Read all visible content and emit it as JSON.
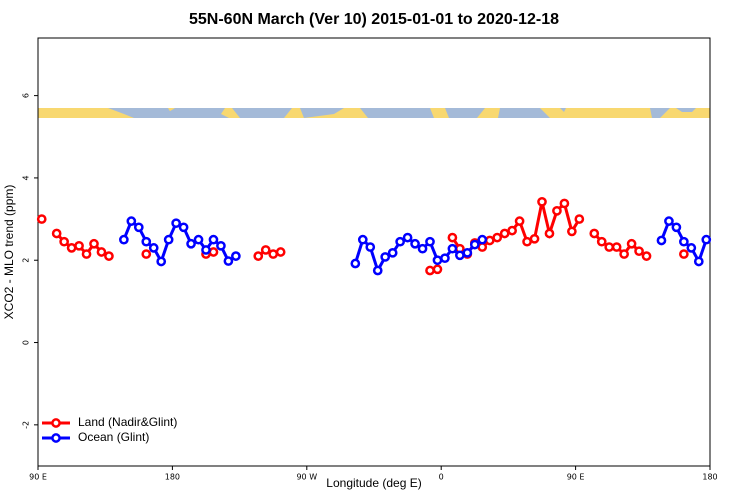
{
  "chart_data": {
    "type": "line",
    "title": "55N-60N March (Ver 10)   2015-01-01 to 2020-12-18",
    "xlabel": "Longitude (deg E)",
    "ylabel": "XCO2 - MLO trend (ppm)",
    "xlim": [
      90,
      540
    ],
    "ylim": [
      -3.0,
      7.4
    ],
    "xticks": [
      {
        "value": 90,
        "label": "90 E"
      },
      {
        "value": 180,
        "label": "180"
      },
      {
        "value": 270,
        "label": "90 W"
      },
      {
        "value": 360,
        "label": "0"
      },
      {
        "value": 450,
        "label": "90 E"
      },
      {
        "value": 540,
        "label": "180"
      }
    ],
    "yticks": [
      -2,
      0,
      2,
      4,
      6
    ],
    "legend": "bottom-left",
    "series": [
      {
        "name": "Land (Nadir&Glint)",
        "color": "#ff0000",
        "x": [
          92.5,
          97.5,
          102.5,
          107.5,
          112.5,
          117.5,
          122.5,
          127.5,
          132.5,
          137.5,
          142.5,
          162.5,
          167.5,
          202.5,
          207.5,
          212.5,
          237.5,
          242.5,
          247.5,
          252.5,
          257.5,
          352.5,
          357.5,
          362.5,
          367.5,
          372.5,
          377.5,
          382.5,
          387.5,
          392.5,
          397.5,
          402.5,
          407.5,
          412.5,
          417.5,
          422.5,
          427.5,
          432.5,
          437.5,
          442.5,
          447.5,
          452.5,
          457.5,
          462.5,
          467.5,
          472.5,
          477.5,
          482.5,
          487.5,
          492.5,
          497.5,
          502.5,
          522.5
        ],
        "values": [
          3.0,
          null,
          2.65,
          2.45,
          2.3,
          2.35,
          2.15,
          2.4,
          2.2,
          2.1,
          null,
          2.15,
          null,
          2.15,
          2.2,
          null,
          2.1,
          2.25,
          2.15,
          2.2,
          null,
          1.75,
          1.78,
          null,
          2.55,
          2.28,
          2.15,
          2.42,
          2.32,
          2.48,
          2.55,
          2.65,
          2.72,
          2.95,
          2.45,
          2.52,
          3.42,
          2.65,
          3.2,
          3.38,
          2.7,
          3.0,
          null,
          2.65,
          2.45,
          2.32,
          2.32,
          2.15,
          2.4,
          2.22,
          2.1,
          null,
          2.15
        ]
      },
      {
        "name": "Ocean (Glint)",
        "color": "#0000ff",
        "x": [
          147.5,
          152.5,
          157.5,
          162.5,
          167.5,
          172.5,
          177.5,
          182.5,
          187.5,
          192.5,
          197.5,
          202.5,
          207.5,
          212.5,
          217.5,
          222.5,
          227.5,
          302.5,
          307.5,
          312.5,
          317.5,
          322.5,
          327.5,
          332.5,
          337.5,
          342.5,
          347.5,
          352.5,
          357.5,
          362.5,
          367.5,
          372.5,
          377.5,
          382.5,
          387.5,
          392.5,
          507.5,
          512.5,
          517.5,
          522.5,
          527.5,
          532.5,
          537.5
        ],
        "values": [
          2.5,
          2.95,
          2.8,
          2.45,
          2.3,
          1.97,
          2.5,
          2.9,
          2.8,
          2.4,
          2.5,
          2.25,
          2.5,
          2.35,
          1.98,
          2.1,
          null,
          1.92,
          2.5,
          2.32,
          1.75,
          2.08,
          2.18,
          2.45,
          2.55,
          2.4,
          2.28,
          2.45,
          2.0,
          2.05,
          2.28,
          2.12,
          2.18,
          2.38,
          2.5,
          null,
          2.48,
          2.95,
          2.8,
          2.45,
          2.3,
          1.97,
          2.5
        ]
      }
    ]
  }
}
